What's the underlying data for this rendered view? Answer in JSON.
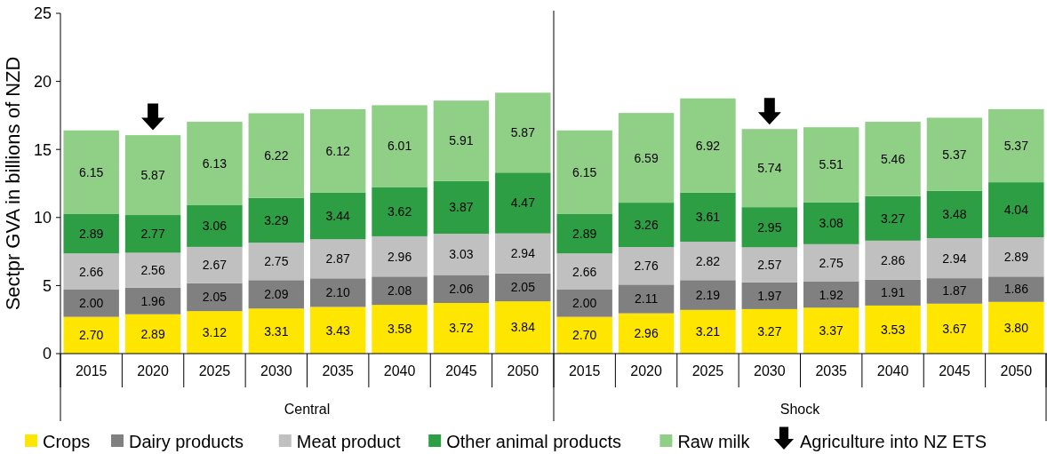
{
  "chart_data": {
    "type": "bar",
    "stacked": true,
    "ylabel": "Sectpr GVA in billions of NZD",
    "categories": [
      "2015",
      "2020",
      "2025",
      "2030",
      "2035",
      "2040",
      "2045",
      "2050",
      "2015",
      "2020",
      "2025",
      "2030",
      "2035",
      "2040",
      "2045",
      "2050"
    ],
    "series": [
      {
        "name": "Crops",
        "color": "#ffe600",
        "values": [
          2.7,
          2.89,
          3.12,
          3.31,
          3.43,
          3.58,
          3.72,
          3.84,
          2.7,
          2.96,
          3.21,
          3.27,
          3.37,
          3.53,
          3.67,
          3.8
        ],
        "value_labels": [
          "2.70",
          "2.89",
          "3.12",
          "3.31",
          "3.43",
          "3.58",
          "3.72",
          "3.84",
          "2.70",
          "2.96",
          "3.21",
          "3.27",
          "3.37",
          "3.53",
          "3.67",
          "3.80"
        ]
      },
      {
        "name": "Dairy products",
        "color": "#808080",
        "values": [
          2.0,
          1.96,
          2.05,
          2.09,
          2.1,
          2.08,
          2.06,
          2.05,
          2.0,
          2.11,
          2.19,
          1.97,
          1.92,
          1.91,
          1.87,
          1.86
        ],
        "value_labels": [
          "2.00",
          "1.96",
          "2.05",
          "2.09",
          "2.10",
          "2.08",
          "2.06",
          "2.05",
          "2.00",
          "2.11",
          "2.19",
          "1.97",
          "1.92",
          "1.91",
          "1.87",
          "1.86"
        ]
      },
      {
        "name": "Meat product",
        "color": "#c0c0c0",
        "values": [
          2.66,
          2.56,
          2.67,
          2.75,
          2.87,
          2.96,
          3.03,
          2.94,
          2.66,
          2.76,
          2.82,
          2.57,
          2.75,
          2.86,
          2.94,
          2.89
        ],
        "value_labels": [
          "2.66",
          "2.56",
          "2.67",
          "2.75",
          "2.87",
          "2.96",
          "3.03",
          "2.94",
          "2.66",
          "2.76",
          "2.82",
          "2.57",
          "2.75",
          "2.86",
          "2.94",
          "2.89"
        ]
      },
      {
        "name": "Other animal products",
        "color": "#2e9e44",
        "values": [
          2.89,
          2.77,
          3.06,
          3.29,
          3.44,
          3.62,
          3.87,
          4.47,
          2.89,
          3.26,
          3.61,
          2.95,
          3.08,
          3.27,
          3.48,
          4.04
        ],
        "value_labels": [
          "2.89",
          "2.77",
          "3.06",
          "3.29",
          "3.44",
          "3.62",
          "3.87",
          "4.47",
          "2.89",
          "3.26",
          "3.61",
          "2.95",
          "3.08",
          "3.27",
          "3.48",
          "4.04"
        ]
      },
      {
        "name": "Raw milk",
        "color": "#8fcf86",
        "values": [
          6.15,
          5.87,
          6.13,
          6.22,
          6.12,
          6.01,
          5.91,
          5.87,
          6.15,
          6.59,
          6.92,
          5.74,
          5.51,
          5.46,
          5.37,
          5.37
        ],
        "value_labels": [
          "6.15",
          "5.87",
          "6.13",
          "6.22",
          "6.12",
          "6.01",
          "5.91",
          "5.87",
          "6.15",
          "6.59",
          "6.92",
          "5.74",
          "5.51",
          "5.46",
          "5.37",
          "5.37"
        ]
      },
      {
        "name": "Agriculture into NZ ETS",
        "type": "scatter",
        "color": "#000000",
        "values": [
          null,
          17.4,
          null,
          null,
          null,
          null,
          null,
          null,
          null,
          null,
          null,
          17.8,
          null,
          null,
          null,
          null
        ]
      }
    ],
    "ylim": [
      0,
      25
    ],
    "yticks": [
      0,
      5,
      10,
      15,
      20,
      25
    ],
    "legend": "bottom",
    "annotations": [
      "Central",
      "Shock"
    ]
  }
}
